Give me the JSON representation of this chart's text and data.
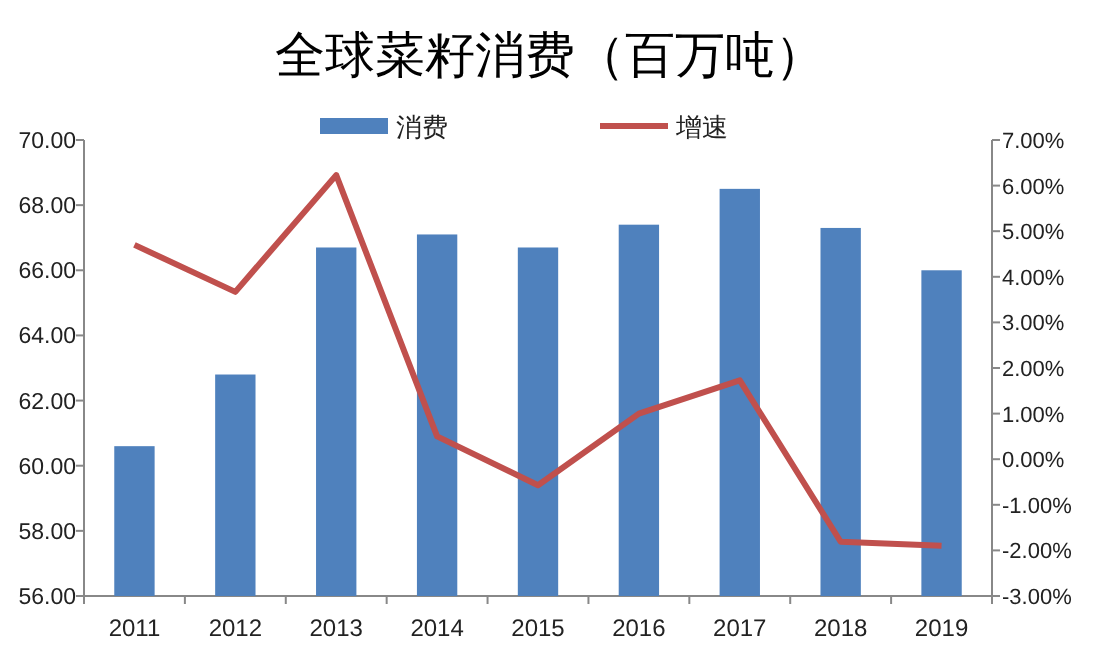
{
  "chart_data": {
    "type": "bar",
    "title": "全球菜籽消费（百万吨）",
    "categories": [
      "2011",
      "2012",
      "2013",
      "2014",
      "2015",
      "2016",
      "2017",
      "2018",
      "2019"
    ],
    "series": [
      {
        "name": "消费",
        "color": "#4f81bd",
        "values": [
          60.6,
          62.8,
          66.7,
          67.1,
          66.7,
          67.4,
          68.5,
          67.3,
          66.0
        ]
      },
      {
        "name": "增速",
        "type": "line",
        "axis": "y2",
        "color": "#c0504d",
        "values": [
          4.7,
          3.67,
          6.23,
          0.5,
          -0.57,
          1.0,
          1.73,
          -1.81,
          -1.9
        ]
      }
    ],
    "ylim": [
      56,
      70
    ],
    "yticks": [
      {
        "value": 56,
        "label": "56.00"
      },
      {
        "value": 58,
        "label": "58.00"
      },
      {
        "value": 60,
        "label": "60.00"
      },
      {
        "value": 62,
        "label": "62.00"
      },
      {
        "value": 64,
        "label": "64.00"
      },
      {
        "value": 66,
        "label": "66.00"
      },
      {
        "value": 68,
        "label": "68.00"
      },
      {
        "value": 70,
        "label": "70.00"
      }
    ],
    "y2lim": [
      -3,
      7
    ],
    "y2ticks": [
      {
        "value": -3,
        "label": "-3.00%"
      },
      {
        "value": -2,
        "label": "-2.00%"
      },
      {
        "value": -1,
        "label": "-1.00%"
      },
      {
        "value": 0,
        "label": "0.00%"
      },
      {
        "value": 1,
        "label": "1.00%"
      },
      {
        "value": 2,
        "label": "2.00%"
      },
      {
        "value": 3,
        "label": "3.00%"
      },
      {
        "value": 4,
        "label": "4.00%"
      },
      {
        "value": 5,
        "label": "5.00%"
      },
      {
        "value": 6,
        "label": "6.00%"
      },
      {
        "value": 7,
        "label": "7.00%"
      }
    ],
    "legend": "top",
    "grid": false
  }
}
